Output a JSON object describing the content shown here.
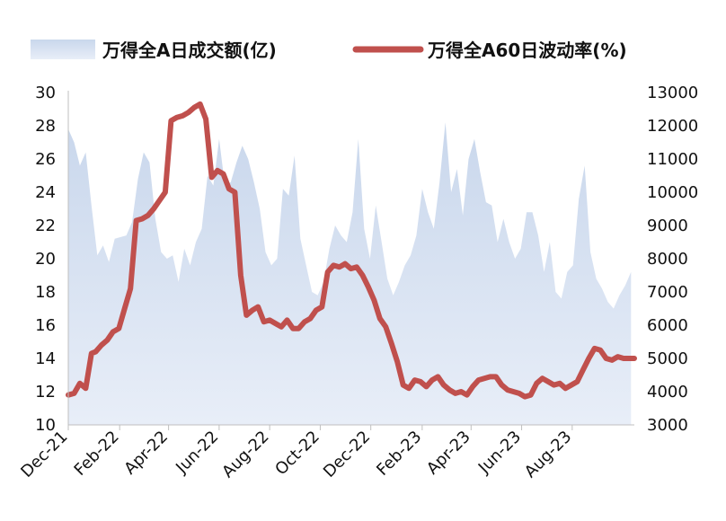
{
  "chart_data": {
    "type": "line",
    "legend": {
      "placement": "top",
      "area_label": "万得全A日成交额(亿)",
      "line_label": "万得全A60日波动率(%)"
    },
    "colors": {
      "area_top": "#c9d7ec",
      "area_bottom": "#e8eef8",
      "line": "#c0504d"
    },
    "x_range": [
      "2021-12-01",
      "2023-10-15"
    ],
    "x_ticks": [
      "Dec-21",
      "Feb-22",
      "Apr-22",
      "Jun-22",
      "Aug-22",
      "Oct-22",
      "Dec-22",
      "Feb-23",
      "Apr-23",
      "Jun-23",
      "Aug-23"
    ],
    "x_tick_dates": [
      "2021-12-01",
      "2022-02-01",
      "2022-04-01",
      "2022-06-01",
      "2022-08-01",
      "2022-10-01",
      "2022-12-01",
      "2023-02-01",
      "2023-04-01",
      "2023-06-01",
      "2023-08-01"
    ],
    "y_left": {
      "ylim": [
        10,
        30
      ],
      "ticks": [
        "10",
        "12",
        "14",
        "16",
        "18",
        "20",
        "22",
        "24",
        "26",
        "28",
        "30"
      ]
    },
    "y_right": {
      "ylim": [
        3000,
        13000
      ],
      "ticks": [
        "3000",
        "4000",
        "5000",
        "6000",
        "7000",
        "8000",
        "9000",
        "10000",
        "11000",
        "12000",
        "13000"
      ]
    },
    "grid": false,
    "series": [
      {
        "name": "万得全A日成交额(亿)",
        "type": "area",
        "axis": "right",
        "x": [
          "2021-12-01",
          "2021-12-08",
          "2021-12-15",
          "2021-12-22",
          "2021-12-29",
          "2022-01-05",
          "2022-01-12",
          "2022-01-19",
          "2022-01-26",
          "2022-02-09",
          "2022-02-16",
          "2022-02-23",
          "2022-03-02",
          "2022-03-09",
          "2022-03-16",
          "2022-03-23",
          "2022-03-30",
          "2022-04-06",
          "2022-04-13",
          "2022-04-20",
          "2022-04-27",
          "2022-05-04",
          "2022-05-11",
          "2022-05-18",
          "2022-05-25",
          "2022-06-01",
          "2022-06-08",
          "2022-06-15",
          "2022-06-22",
          "2022-06-29",
          "2022-07-06",
          "2022-07-13",
          "2022-07-20",
          "2022-07-27",
          "2022-08-03",
          "2022-08-10",
          "2022-08-17",
          "2022-08-24",
          "2022-08-31",
          "2022-09-07",
          "2022-09-14",
          "2022-09-21",
          "2022-09-28",
          "2022-10-05",
          "2022-10-12",
          "2022-10-19",
          "2022-10-26",
          "2022-11-02",
          "2022-11-09",
          "2022-11-16",
          "2022-11-23",
          "2022-11-30",
          "2022-12-07",
          "2022-12-14",
          "2022-12-21",
          "2022-12-28",
          "2023-01-04",
          "2023-01-11",
          "2023-01-18",
          "2023-01-25",
          "2023-02-01",
          "2023-02-08",
          "2023-02-15",
          "2023-02-22",
          "2023-03-01",
          "2023-03-08",
          "2023-03-15",
          "2023-03-22",
          "2023-03-29",
          "2023-04-05",
          "2023-04-12",
          "2023-04-19",
          "2023-04-26",
          "2023-05-03",
          "2023-05-10",
          "2023-05-17",
          "2023-05-24",
          "2023-05-31",
          "2023-06-07",
          "2023-06-14",
          "2023-06-21",
          "2023-06-28",
          "2023-07-05",
          "2023-07-12",
          "2023-07-19",
          "2023-07-26",
          "2023-08-02",
          "2023-08-09",
          "2023-08-16",
          "2023-08-23",
          "2023-08-30",
          "2023-09-06",
          "2023-09-13",
          "2023-09-20",
          "2023-09-27",
          "2023-10-04",
          "2023-10-11"
        ],
        "values": [
          11900,
          11500,
          10800,
          11200,
          9600,
          8100,
          8400,
          7900,
          8600,
          8700,
          9100,
          10400,
          11200,
          10900,
          9200,
          8200,
          8000,
          8100,
          7300,
          8300,
          7800,
          8500,
          8900,
          10500,
          10200,
          11600,
          10200,
          10300,
          10900,
          11400,
          11000,
          10300,
          9500,
          8200,
          7800,
          8000,
          10100,
          9900,
          11100,
          8600,
          7800,
          7000,
          6900,
          7300,
          8300,
          9000,
          8700,
          8500,
          9400,
          11600,
          8900,
          8000,
          9600,
          8500,
          7400,
          6900,
          7300,
          7800,
          8100,
          8700,
          10100,
          9400,
          8900,
          10300,
          12100,
          10000,
          10700,
          9300,
          11000,
          11600,
          10600,
          9700,
          9600,
          8500,
          9200,
          8500,
          8000,
          8300,
          9400,
          9400,
          8700,
          7600,
          8500,
          7000,
          6800,
          7600,
          7800,
          9800,
          10800,
          8200,
          7400,
          7100,
          6700,
          6500,
          6900,
          7200,
          7600
        ]
      },
      {
        "name": "万得全A60日波动率(%)",
        "type": "line",
        "axis": "left",
        "x": [
          "2021-12-01",
          "2021-12-08",
          "2021-12-15",
          "2021-12-22",
          "2021-12-29",
          "2022-01-03",
          "2022-01-10",
          "2022-01-17",
          "2022-01-24",
          "2022-01-31",
          "2022-02-07",
          "2022-02-14",
          "2022-02-21",
          "2022-02-28",
          "2022-03-07",
          "2022-03-14",
          "2022-03-21",
          "2022-03-28",
          "2022-04-04",
          "2022-04-11",
          "2022-04-18",
          "2022-04-25",
          "2022-05-02",
          "2022-05-09",
          "2022-05-16",
          "2022-05-23",
          "2022-05-30",
          "2022-06-06",
          "2022-06-13",
          "2022-06-20",
          "2022-06-27",
          "2022-07-04",
          "2022-07-11",
          "2022-07-18",
          "2022-07-25",
          "2022-08-01",
          "2022-08-08",
          "2022-08-15",
          "2022-08-22",
          "2022-08-29",
          "2022-09-05",
          "2022-09-12",
          "2022-09-19",
          "2022-09-26",
          "2022-10-03",
          "2022-10-10",
          "2022-10-17",
          "2022-10-24",
          "2022-10-31",
          "2022-11-07",
          "2022-11-14",
          "2022-11-21",
          "2022-11-28",
          "2022-12-05",
          "2022-12-12",
          "2022-12-19",
          "2022-12-26",
          "2023-01-02",
          "2023-01-09",
          "2023-01-16",
          "2023-01-23",
          "2023-01-30",
          "2023-02-06",
          "2023-02-13",
          "2023-02-20",
          "2023-02-27",
          "2023-03-06",
          "2023-03-13",
          "2023-03-20",
          "2023-03-27",
          "2023-04-03",
          "2023-04-10",
          "2023-04-17",
          "2023-04-24",
          "2023-05-01",
          "2023-05-08",
          "2023-05-15",
          "2023-05-22",
          "2023-05-29",
          "2023-06-05",
          "2023-06-12",
          "2023-06-19",
          "2023-06-26",
          "2023-07-03",
          "2023-07-10",
          "2023-07-17",
          "2023-07-24",
          "2023-07-31",
          "2023-08-07",
          "2023-08-14",
          "2023-08-21",
          "2023-08-28",
          "2023-09-04",
          "2023-09-11",
          "2023-09-18",
          "2023-09-25",
          "2023-10-02",
          "2023-10-09",
          "2023-10-15"
        ],
        "values": [
          11.8,
          11.9,
          12.5,
          12.2,
          14.3,
          14.4,
          14.8,
          15.1,
          15.6,
          15.8,
          17.0,
          18.2,
          22.3,
          22.4,
          22.6,
          23.0,
          23.5,
          24.0,
          28.3,
          28.5,
          28.6,
          28.8,
          29.1,
          29.3,
          28.4,
          24.9,
          25.3,
          25.1,
          24.2,
          24.0,
          19.0,
          16.6,
          16.9,
          17.1,
          16.2,
          16.3,
          16.1,
          15.9,
          16.3,
          15.8,
          15.8,
          16.2,
          16.4,
          16.9,
          17.1,
          19.2,
          19.6,
          19.5,
          19.7,
          19.4,
          19.5,
          19.0,
          18.3,
          17.5,
          16.4,
          15.9,
          14.9,
          13.8,
          12.4,
          12.2,
          12.7,
          12.6,
          12.3,
          12.7,
          12.9,
          12.4,
          12.1,
          11.9,
          12.0,
          11.8,
          12.3,
          12.7,
          12.8,
          12.9,
          12.9,
          12.4,
          12.1,
          12.0,
          11.9,
          11.7,
          11.8,
          12.5,
          12.8,
          12.6,
          12.4,
          12.5,
          12.2,
          12.4,
          12.6,
          13.3,
          14.0,
          14.6,
          14.5,
          14.0,
          13.9,
          14.1,
          14.0,
          14.0,
          14.0
        ]
      }
    ]
  }
}
